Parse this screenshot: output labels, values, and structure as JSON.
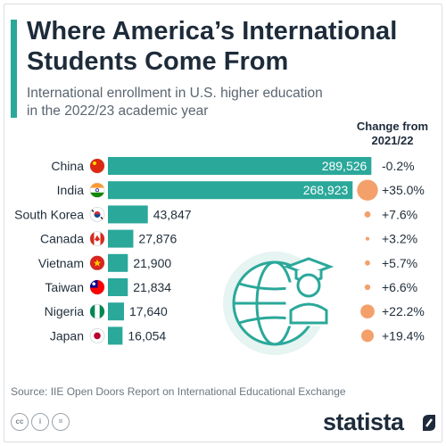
{
  "header": {
    "title_line1": "Where America’s International",
    "title_line2": "Students Come From",
    "subtitle_line1": "International enrollment in U.S. higher education",
    "subtitle_line2": "in the 2022/23 academic year"
  },
  "chart_data": {
    "type": "bar",
    "orientation": "horizontal",
    "categories": [
      "China",
      "India",
      "South Korea",
      "Canada",
      "Vietnam",
      "Taiwan",
      "Nigeria",
      "Japan"
    ],
    "values": [
      289526,
      268923,
      43847,
      27876,
      21900,
      21834,
      17640,
      16054
    ],
    "value_labels": [
      "289,526",
      "268,923",
      "43,847",
      "27,876",
      "21,900",
      "21,834",
      "17,640",
      "16,054"
    ],
    "change_header_line1": "Change from",
    "change_header_line2": "2021/22",
    "change_values": [
      -0.2,
      35.0,
      7.6,
      3.2,
      5.7,
      6.6,
      22.2,
      19.4
    ],
    "change_labels": [
      "-0.2%",
      "+35.0%",
      "+7.6%",
      "+3.2%",
      "+5.7%",
      "+6.6%",
      "+22.2%",
      "+19.4%"
    ],
    "flags": [
      "china-flag-icon",
      "india-flag-icon",
      "south-korea-flag-icon",
      "canada-flag-icon",
      "vietnam-flag-icon",
      "taiwan-flag-icon",
      "nigeria-flag-icon",
      "japan-flag-icon"
    ],
    "bar_color": "#2aa89a",
    "bubble_color": "#f4a06b",
    "xlim": [
      0,
      300000
    ]
  },
  "footer": {
    "source": "Source: IIE Open Doors Report on International Educational Exchange",
    "cc_icons": [
      "cc",
      "i",
      "="
    ],
    "brand": "statista"
  }
}
